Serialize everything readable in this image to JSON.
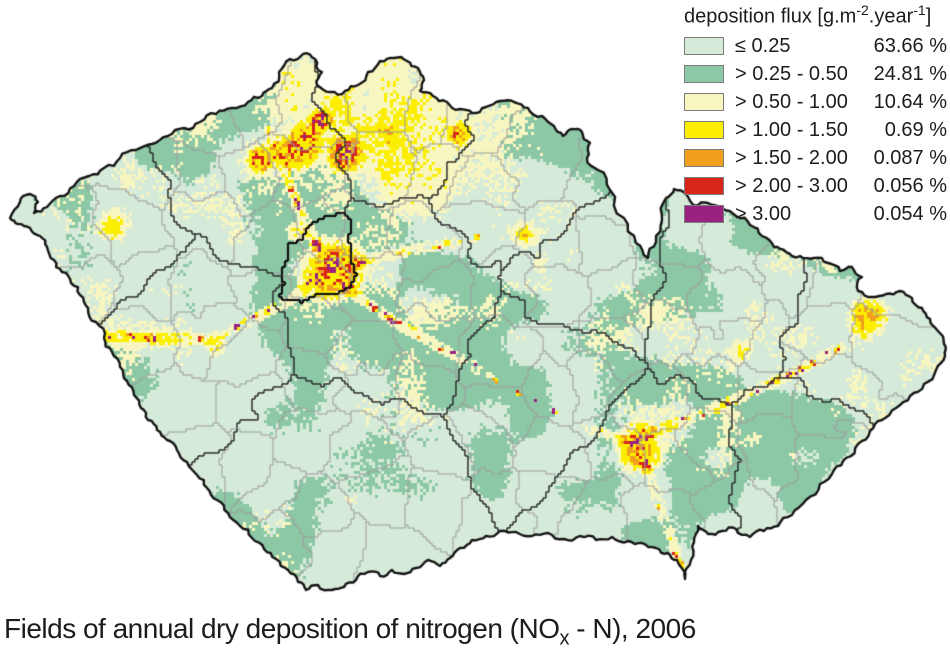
{
  "legend": {
    "title": {
      "prefix": "deposition flux [g.m",
      "sup1": "-2",
      "mid": ".year",
      "sup2": "-1",
      "suffix": "]"
    },
    "rows": [
      {
        "label": "≤ 0.25",
        "percent": "63.66 %",
        "color": "#d6ead9"
      },
      {
        "label": "> 0.25 - 0.50",
        "percent": "24.81 %",
        "color": "#8cc8a6"
      },
      {
        "label": "> 0.50 - 1.00",
        "percent": "10.64 %",
        "color": "#f8f6c0"
      },
      {
        "label": "> 1.00 - 1.50",
        "percent": "0.69 %",
        "color": "#fbee00"
      },
      {
        "label": "> 1.50 - 2.00",
        "percent": "0.087 %",
        "color": "#f0a01e"
      },
      {
        "label": "> 2.00 - 3.00",
        "percent": "0.056 %",
        "color": "#d9261c"
      },
      {
        "label": "> 3.00",
        "percent": "0.054 %",
        "color": "#992180"
      }
    ]
  },
  "caption": {
    "prefix": "Fields of annual dry deposition of nitrogen (NO",
    "sub": "x",
    "suffix": " - N), 2006"
  },
  "map": {
    "outline_color": "#151515",
    "region_border_color": "#2e2e2e",
    "district_border_color": "#9c9c9c",
    "background": "#ffffff"
  }
}
